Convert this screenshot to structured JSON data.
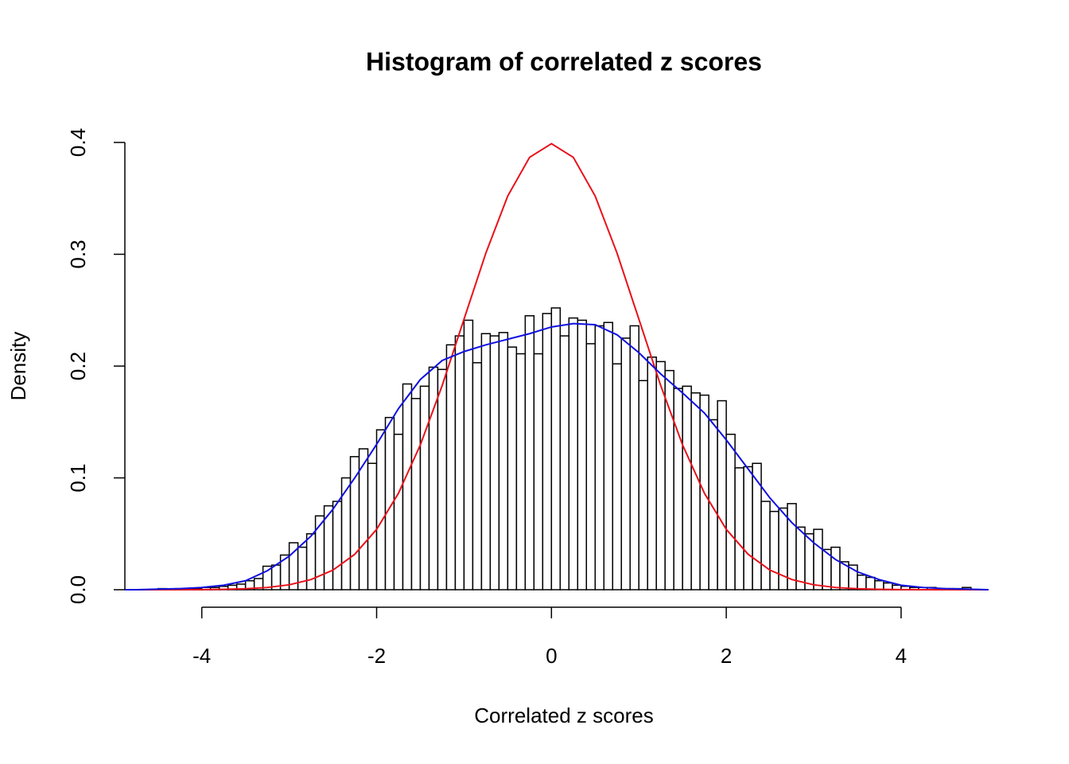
{
  "chart_data": {
    "type": "histogram",
    "title": "Histogram of correlated z scores",
    "xlabel": "Correlated z scores",
    "ylabel": "Density",
    "bins": [
      -4.5,
      -4.4,
      -4.3,
      -4.2,
      -4.1,
      -4.0,
      -3.9,
      -3.8,
      -3.7,
      -3.6,
      -3.5,
      -3.4,
      -3.3,
      -3.2,
      -3.1,
      -3.0,
      -2.9,
      -2.8,
      -2.7,
      -2.6,
      -2.5,
      -2.4,
      -2.3,
      -2.2,
      -2.1,
      -2.0,
      -1.9,
      -1.8,
      -1.7,
      -1.6,
      -1.5,
      -1.4,
      -1.3,
      -1.2,
      -1.1,
      -1.0,
      -0.9,
      -0.8,
      -0.7,
      -0.6,
      -0.5,
      -0.4,
      -0.3,
      -0.2,
      -0.1,
      0.0,
      0.1,
      0.2,
      0.3,
      0.4,
      0.5,
      0.6,
      0.7,
      0.8,
      0.9,
      1.0,
      1.1,
      1.2,
      1.3,
      1.4,
      1.5,
      1.6,
      1.7,
      1.8,
      1.9,
      2.0,
      2.1,
      2.2,
      2.3,
      2.4,
      2.5,
      2.6,
      2.7,
      2.8,
      2.9,
      3.0,
      3.1,
      3.2,
      3.3,
      3.4,
      3.5,
      3.6,
      3.7,
      3.8,
      3.9,
      4.0,
      4.1,
      4.2,
      4.3,
      4.4,
      4.5,
      4.6,
      4.7,
      4.8
    ],
    "values": [
      0.001,
      0,
      0.001,
      0.001,
      0.001,
      0.002,
      0.002,
      0.003,
      0.004,
      0.005,
      0.008,
      0.01,
      0.021,
      0.022,
      0.031,
      0.042,
      0.038,
      0.05,
      0.066,
      0.075,
      0.079,
      0.1,
      0.119,
      0.126,
      0.113,
      0.143,
      0.154,
      0.139,
      0.184,
      0.171,
      0.182,
      0.199,
      0.197,
      0.219,
      0.227,
      0.241,
      0.203,
      0.229,
      0.227,
      0.23,
      0.217,
      0.211,
      0.245,
      0.211,
      0.247,
      0.252,
      0.227,
      0.243,
      0.241,
      0.22,
      0.236,
      0.239,
      0.202,
      0.225,
      0.236,
      0.187,
      0.208,
      0.204,
      0.196,
      0.18,
      0.182,
      0.176,
      0.174,
      0.152,
      0.169,
      0.139,
      0.109,
      0.11,
      0.113,
      0.079,
      0.07,
      0.073,
      0.077,
      0.056,
      0.05,
      0.054,
      0.036,
      0.038,
      0.025,
      0.022,
      0.013,
      0.011,
      0.008,
      0.006,
      0.004,
      0.003,
      0.002,
      0.002,
      0.002,
      0.001,
      0.001,
      0.001,
      0.002
    ],
    "color": "#ffffff",
    "series": [
      {
        "color": "#e8101a",
        "x": [
          -5,
          -4.75,
          -4.5,
          -4.25,
          -4,
          -3.75,
          -3.5,
          -3.25,
          -3,
          -2.75,
          -2.5,
          -2.25,
          -2,
          -1.75,
          -1.5,
          -1.25,
          -1,
          -0.75,
          -0.5,
          -0.25,
          0,
          0.25,
          0.5,
          0.75,
          1,
          1.25,
          1.5,
          1.75,
          2,
          2.25,
          2.5,
          2.75,
          3,
          3.25,
          3.5,
          3.75,
          4,
          4.25,
          4.5,
          4.75,
          5
        ],
        "values": [
          0,
          0,
          0,
          0,
          0.0001,
          0.0004,
          0.0009,
          0.002,
          0.0044,
          0.0091,
          0.0175,
          0.0317,
          0.054,
          0.0863,
          0.1295,
          0.1826,
          0.242,
          0.3011,
          0.3521,
          0.3867,
          0.3989,
          0.3867,
          0.3521,
          0.3011,
          0.242,
          0.1826,
          0.1295,
          0.0863,
          0.054,
          0.0317,
          0.0175,
          0.0091,
          0.0044,
          0.002,
          0.0009,
          0.0004,
          0.0001,
          0,
          0,
          0,
          0
        ]
      },
      {
        "color": "#1010e0",
        "x": [
          -5,
          -4.75,
          -4.5,
          -4.25,
          -4,
          -3.75,
          -3.5,
          -3.25,
          -3,
          -2.75,
          -2.5,
          -2.25,
          -2,
          -1.75,
          -1.5,
          -1.25,
          -1,
          -0.75,
          -0.5,
          -0.25,
          0,
          0.25,
          0.5,
          0.75,
          1,
          1.25,
          1.5,
          1.75,
          2,
          2.25,
          2.5,
          2.75,
          3,
          3.25,
          3.5,
          3.75,
          4,
          4.25,
          4.5,
          4.75,
          5
        ],
        "values": [
          0,
          0,
          0.0005,
          0.001,
          0.002,
          0.004,
          0.008,
          0.017,
          0.03,
          0.048,
          0.072,
          0.1,
          0.13,
          0.162,
          0.188,
          0.205,
          0.213,
          0.219,
          0.224,
          0.229,
          0.235,
          0.238,
          0.237,
          0.228,
          0.212,
          0.193,
          0.176,
          0.158,
          0.134,
          0.108,
          0.082,
          0.06,
          0.042,
          0.027,
          0.016,
          0.009,
          0.004,
          0.002,
          0.001,
          0.0005,
          0
        ]
      }
    ],
    "xlim": [
      -4.88,
      5.02
    ],
    "ylim": [
      0,
      0.4
    ],
    "xticks": [
      -4,
      -2,
      0,
      2,
      4
    ],
    "yticks": [
      {
        "value": 0,
        "label": "0.0"
      },
      0.1,
      0.2,
      0.3,
      0.4
    ]
  }
}
